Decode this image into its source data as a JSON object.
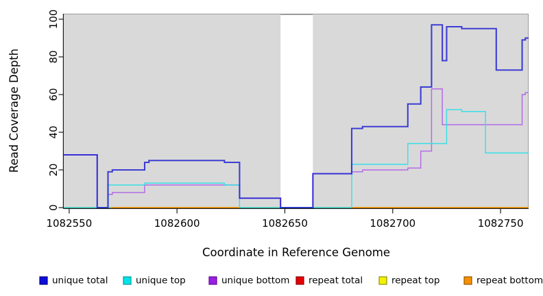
{
  "chart_data": {
    "type": "line",
    "step_interpolation": true,
    "title": "",
    "xlabel": "Coordinate in Reference Genome",
    "ylabel": "Read Coverage Depth",
    "xlim": [
      1082547.5,
      1082763
    ],
    "ylim": [
      0,
      100
    ],
    "x_ticks": [
      1082550,
      1082600,
      1082650,
      1082700,
      1082750
    ],
    "y_ticks": [
      0,
      20,
      40,
      60,
      80,
      100
    ],
    "grid": false,
    "legend_position": "bottom",
    "panel_bg": "#d9d9d9",
    "axis_color": "#1a1a1a",
    "panel_border_light": "#9a9a9a",
    "gap_region": {
      "from": 1082648,
      "to": 1082663,
      "fill": "#ffffff",
      "border": "#888888"
    },
    "baseline_overlap_tint": {
      "color": "#8ccd8c",
      "segments": [
        [
          1082547.5,
          1082570
        ],
        [
          1082629,
          1082648
        ],
        [
          1082663,
          1082681
        ]
      ]
    },
    "series": [
      {
        "name": "unique total",
        "color": "#1b1bd4",
        "line_width": 2.1,
        "opacity": 0.82,
        "points": [
          [
            1082547.5,
            28
          ],
          [
            1082563,
            0
          ],
          [
            1082568,
            19
          ],
          [
            1082570,
            20
          ],
          [
            1082585,
            24
          ],
          [
            1082587,
            25
          ],
          [
            1082622,
            24
          ],
          [
            1082629,
            5
          ],
          [
            1082648,
            0
          ],
          [
            1082663,
            18
          ],
          [
            1082681,
            42
          ],
          [
            1082686,
            43
          ],
          [
            1082707,
            55
          ],
          [
            1082713,
            64
          ],
          [
            1082718,
            97
          ],
          [
            1082723,
            78
          ],
          [
            1082725,
            96
          ],
          [
            1082732,
            95
          ],
          [
            1082748,
            73
          ],
          [
            1082760,
            89
          ],
          [
            1082761.5,
            90
          ]
        ]
      },
      {
        "name": "unique top",
        "color": "#35dfe6",
        "line_width": 1.4,
        "opacity": 1,
        "points": [
          [
            1082547.5,
            0
          ],
          [
            1082568,
            12
          ],
          [
            1082585,
            13
          ],
          [
            1082622,
            12
          ],
          [
            1082629,
            0
          ],
          [
            1082681,
            23
          ],
          [
            1082707,
            34
          ],
          [
            1082725,
            52
          ],
          [
            1082732,
            51
          ],
          [
            1082743,
            29
          ]
        ]
      },
      {
        "name": "unique bottom",
        "color": "#b36ae8",
        "line_width": 1.5,
        "opacity": 1,
        "points": [
          [
            1082547.5,
            28
          ],
          [
            1082563,
            0
          ],
          [
            1082568,
            7
          ],
          [
            1082570,
            8
          ],
          [
            1082585,
            12
          ],
          [
            1082629,
            5
          ],
          [
            1082648,
            0
          ],
          [
            1082663,
            18
          ],
          [
            1082681,
            19
          ],
          [
            1082686,
            20
          ],
          [
            1082707,
            21
          ],
          [
            1082713,
            30
          ],
          [
            1082718,
            63
          ],
          [
            1082723,
            44
          ],
          [
            1082760,
            60
          ],
          [
            1082761.5,
            61
          ]
        ]
      },
      {
        "name": "repeat total",
        "color": "#e41414",
        "line_width": 1.4,
        "opacity": 1,
        "points": [
          [
            1082547.5,
            0
          ]
        ]
      },
      {
        "name": "repeat top",
        "color": "#f0f000",
        "line_width": 1.4,
        "opacity": 1,
        "points": [
          [
            1082547.5,
            0
          ]
        ]
      },
      {
        "name": "repeat bottom",
        "color": "#f59100",
        "line_width": 1.6,
        "opacity": 1,
        "points": [
          [
            1082547.5,
            0
          ]
        ]
      }
    ],
    "legend": [
      {
        "label": "unique total",
        "fill": "#0d0de0",
        "border": "#000080"
      },
      {
        "label": "unique top",
        "fill": "#00e2e8",
        "border": "#009aa0"
      },
      {
        "label": "unique bottom",
        "fill": "#9b1ee8",
        "border": "#5c0a92"
      },
      {
        "label": "repeat total",
        "fill": "#e60000",
        "border": "#8c0000"
      },
      {
        "label": "repeat top",
        "fill": "#f2f200",
        "border": "#8f8f00"
      },
      {
        "label": "repeat bottom",
        "fill": "#f59100",
        "border": "#995400"
      }
    ]
  }
}
